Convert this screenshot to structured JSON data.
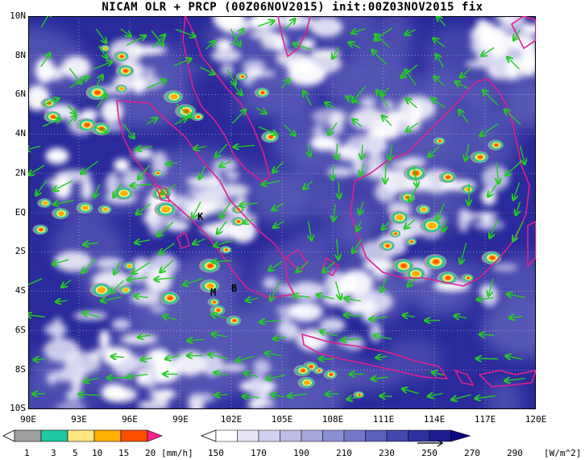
{
  "title": "NICAM OLR + PRCP (00Z06NOV2015) init:00Z03NOV2015 fix",
  "axes": {
    "lat_labels": [
      "10N",
      "8N",
      "6N",
      "4N",
      "2N",
      "EQ",
      "2S",
      "4S",
      "6S",
      "8S",
      "10S"
    ],
    "lon_labels": [
      "90E",
      "93E",
      "96E",
      "99E",
      "102E",
      "105E",
      "108E",
      "111E",
      "114E",
      "117E",
      "120E"
    ]
  },
  "markers": [
    {
      "label": "K"
    },
    {
      "label": "M"
    },
    {
      "label": "B"
    }
  ],
  "precip_colorbar": {
    "ticks": [
      "1",
      "3",
      "5",
      "10",
      "15",
      "20"
    ],
    "unit": "[mm/h]",
    "colors": [
      "#a0a0a0",
      "#1ec8a0",
      "#ffe680",
      "#ffb000",
      "#ff5000",
      "#ff2090"
    ]
  },
  "olr_colorbar": {
    "ticks": [
      "150",
      "170",
      "190",
      "210",
      "230",
      "250",
      "270",
      "290"
    ],
    "unit": "[W/m^2]",
    "colors": [
      "#ffffff",
      "#e6e6f5",
      "#d2d2ee",
      "#bcbce6",
      "#a6a6dd",
      "#8e8ed2",
      "#7676c8",
      "#5e5ebc",
      "#4646ae",
      "#2f2fa0",
      "#1c1c90",
      "#0a0a80"
    ]
  },
  "colors": {
    "coastline": "#e0208c",
    "wind_vector": "#22cc22",
    "olr_deep": "#1f1f96",
    "olr_mid": "#5858b6"
  }
}
